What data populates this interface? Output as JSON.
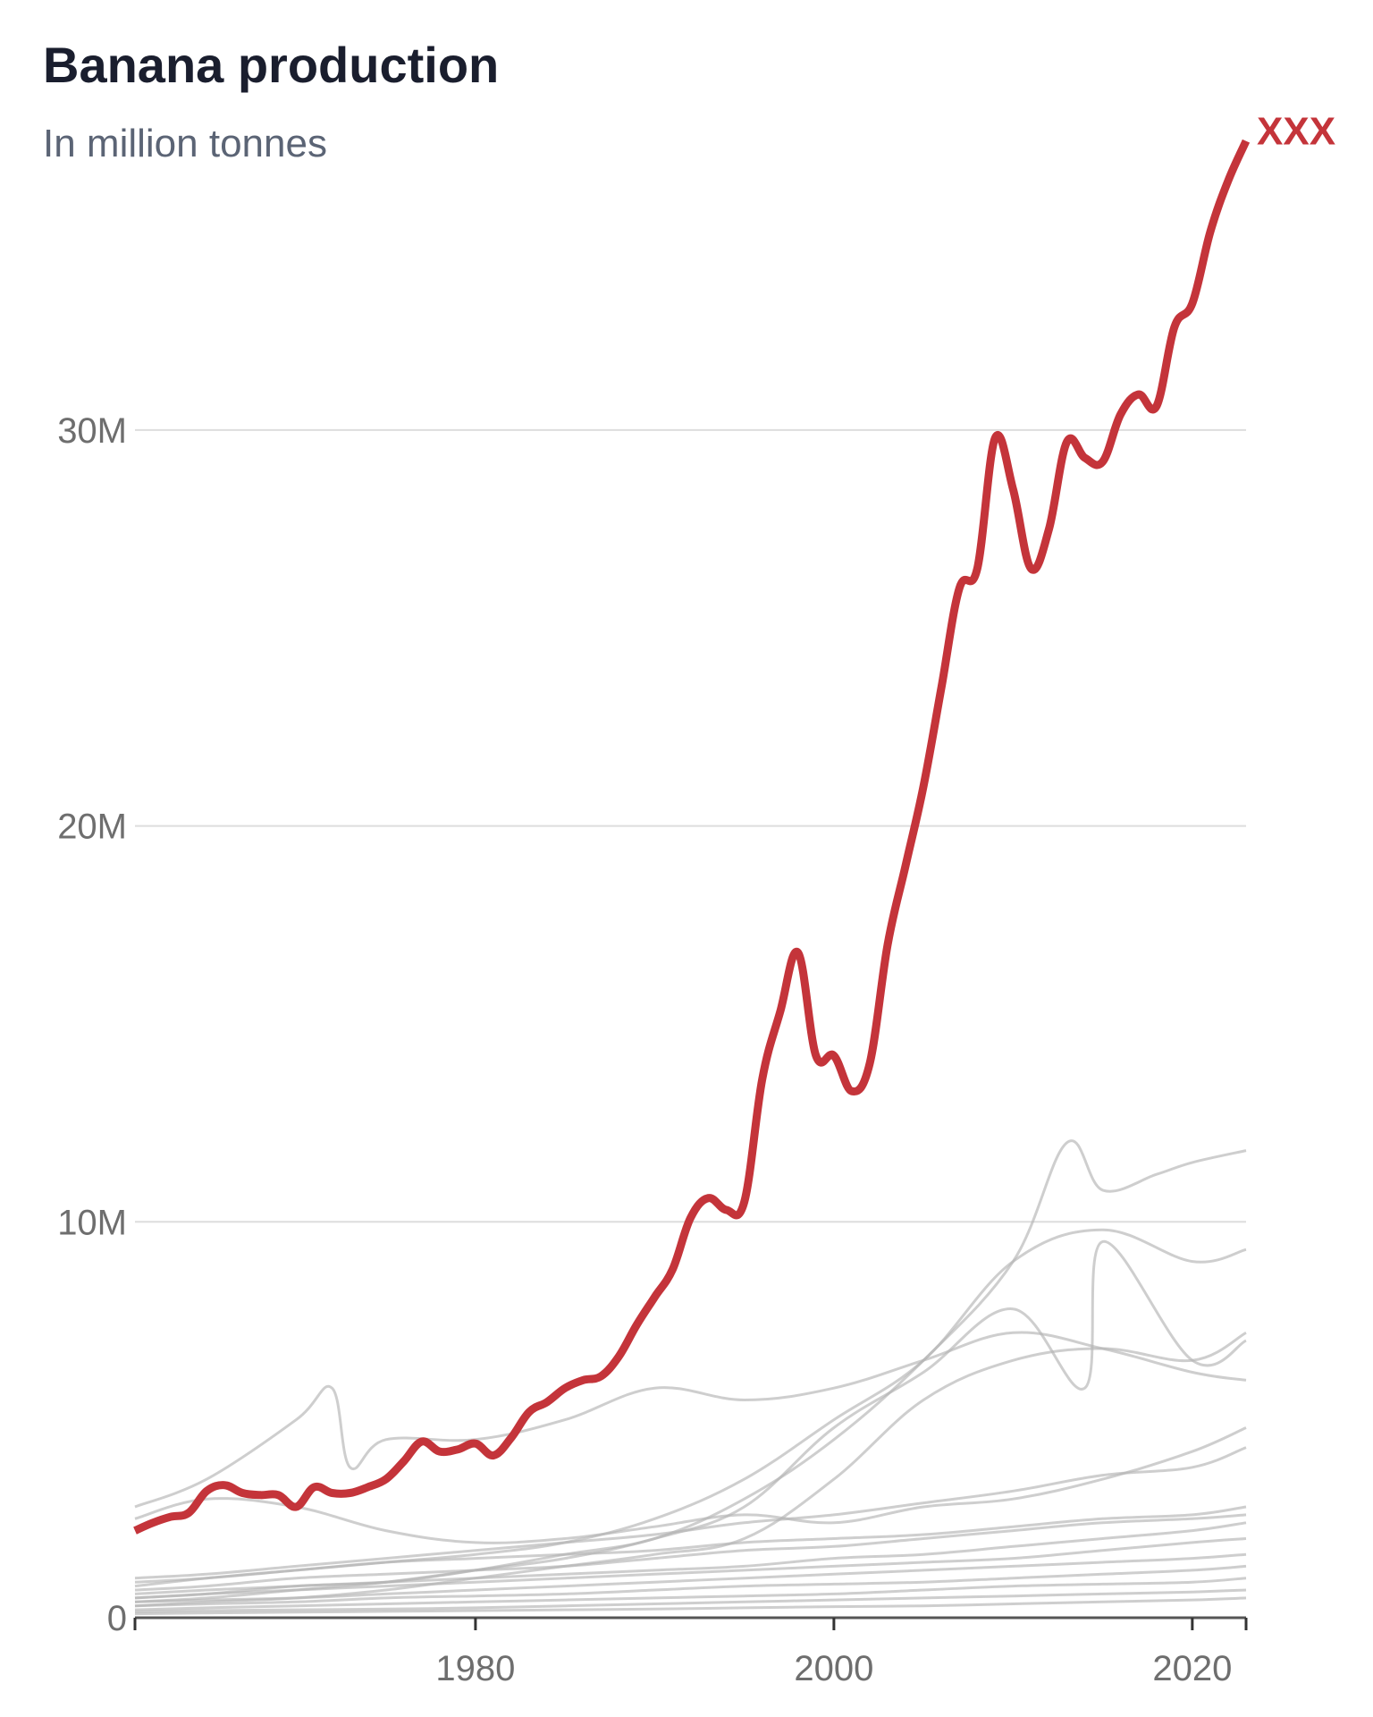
{
  "header": {
    "title": "Banana production",
    "subtitle": "In million tonnes"
  },
  "chart_data": {
    "type": "line",
    "title": "Banana production",
    "subtitle": "In million tonnes",
    "xlabel": "",
    "ylabel": "",
    "xlim": [
      1961,
      2023
    ],
    "ylim": [
      0,
      37
    ],
    "grid": true,
    "legend": "none",
    "x_ticks": [
      {
        "value": 1980,
        "label": "1980"
      },
      {
        "value": 2000,
        "label": "2000"
      },
      {
        "value": 2020,
        "label": "2020"
      }
    ],
    "y_ticks": [
      {
        "value": 0,
        "label": "0"
      },
      {
        "value": 10,
        "label": "10M"
      },
      {
        "value": 20,
        "label": "20M"
      },
      {
        "value": 30,
        "label": "30M"
      }
    ],
    "highlight_color": "#c4343a",
    "background_color": "#b3b3b3",
    "series": [
      {
        "name": "XXX",
        "highlight": true,
        "x": [
          1961,
          1962,
          1963,
          1964,
          1965,
          1966,
          1967,
          1968,
          1969,
          1970,
          1971,
          1972,
          1973,
          1974,
          1975,
          1976,
          1977,
          1978,
          1979,
          1980,
          1981,
          1982,
          1983,
          1984,
          1985,
          1986,
          1987,
          1988,
          1989,
          1990,
          1991,
          1992,
          1993,
          1994,
          1995,
          1996,
          1997,
          1998,
          1999,
          2000,
          2001,
          2002,
          2003,
          2004,
          2005,
          2006,
          2007,
          2008,
          2009,
          2010,
          2011,
          2012,
          2013,
          2014,
          2015,
          2016,
          2017,
          2018,
          2019,
          2020,
          2021,
          2022,
          2023
        ],
        "values": [
          2.2,
          2.4,
          2.55,
          2.65,
          3.2,
          3.35,
          3.15,
          3.1,
          3.1,
          2.8,
          3.3,
          3.15,
          3.15,
          3.3,
          3.5,
          3.95,
          4.45,
          4.2,
          4.25,
          4.4,
          4.1,
          4.55,
          5.2,
          5.45,
          5.8,
          6.0,
          6.1,
          6.6,
          7.4,
          8.1,
          8.8,
          10.1,
          10.6,
          10.3,
          10.5,
          13.6,
          15.3,
          16.8,
          14.2,
          14.2,
          13.3,
          14.0,
          17.0,
          19.0,
          21.0,
          23.5,
          26.0,
          26.5,
          29.8,
          28.5,
          26.5,
          27.5,
          29.7,
          29.3,
          29.2,
          30.4,
          30.9,
          30.6,
          32.6,
          33.2,
          35.0,
          36.3,
          37.3
        ]
      },
      {
        "name": "",
        "highlight": false,
        "x": [
          1961,
          1965,
          1970,
          1975,
          1980,
          1985,
          1990,
          1995,
          2000,
          2005,
          2010,
          2013,
          2015,
          2018,
          2020,
          2023
        ],
        "values": [
          0.5,
          0.6,
          0.8,
          0.9,
          1.2,
          1.6,
          2.0,
          3.0,
          4.5,
          6.5,
          9.0,
          12.0,
          10.8,
          11.2,
          11.5,
          11.8
        ]
      },
      {
        "name": "",
        "highlight": false,
        "x": [
          1961,
          1965,
          1970,
          1975,
          1980,
          1985,
          1990,
          1995,
          2000,
          2005,
          2010,
          2015,
          2020,
          2023
        ],
        "values": [
          0.8,
          1.0,
          1.2,
          1.4,
          1.6,
          1.9,
          2.5,
          3.5,
          5.0,
          6.5,
          9.0,
          9.8,
          9.0,
          9.3
        ]
      },
      {
        "name": "",
        "highlight": false,
        "x": [
          1961,
          1965,
          1970,
          1972,
          1973,
          1975,
          1980,
          1985,
          1990,
          1995,
          2000,
          2005,
          2010,
          2015,
          2020,
          2023
        ],
        "values": [
          2.8,
          3.5,
          5.0,
          5.8,
          3.8,
          4.5,
          4.5,
          5.0,
          5.8,
          5.5,
          5.8,
          6.5,
          7.2,
          6.8,
          6.2,
          6.0
        ]
      },
      {
        "name": "",
        "highlight": false,
        "x": [
          1961,
          1965,
          1970,
          1975,
          1980,
          1985,
          1990,
          1995,
          2000,
          2005,
          2010,
          2014,
          2015,
          2020,
          2023
        ],
        "values": [
          0.4,
          0.5,
          0.7,
          0.9,
          1.2,
          1.5,
          2.0,
          2.8,
          4.8,
          6.2,
          7.8,
          5.8,
          9.5,
          6.5,
          7.0
        ]
      },
      {
        "name": "",
        "highlight": false,
        "x": [
          1961,
          1965,
          1970,
          1975,
          1980,
          1985,
          1990,
          1995,
          2000,
          2005,
          2010,
          2015,
          2020,
          2023
        ],
        "values": [
          0.3,
          0.4,
          0.5,
          0.7,
          1.0,
          1.3,
          1.6,
          2.0,
          3.5,
          5.5,
          6.5,
          6.8,
          6.5,
          7.2
        ]
      },
      {
        "name": "",
        "highlight": false,
        "x": [
          1961,
          1965,
          1970,
          1975,
          1980,
          1985,
          1990,
          1995,
          2000,
          2005,
          2010,
          2015,
          2020,
          2023
        ],
        "values": [
          2.5,
          3.0,
          2.8,
          2.2,
          1.9,
          2.0,
          2.3,
          2.6,
          2.4,
          2.8,
          3.0,
          3.5,
          4.2,
          4.8
        ]
      },
      {
        "name": "",
        "highlight": false,
        "x": [
          1961,
          1965,
          1970,
          1975,
          1980,
          1985,
          1990,
          1995,
          2000,
          2005,
          2010,
          2015,
          2020,
          2023
        ],
        "values": [
          1.0,
          1.1,
          1.3,
          1.5,
          1.7,
          1.9,
          2.1,
          2.4,
          2.6,
          2.9,
          3.2,
          3.6,
          3.8,
          4.3
        ]
      },
      {
        "name": "",
        "highlight": false,
        "x": [
          1961,
          1965,
          1970,
          1975,
          1980,
          1985,
          1990,
          1995,
          2000,
          2005,
          2010,
          2015,
          2020,
          2023
        ],
        "values": [
          0.9,
          1.0,
          1.2,
          1.4,
          1.5,
          1.6,
          1.7,
          1.9,
          2.0,
          2.1,
          2.3,
          2.5,
          2.6,
          2.8
        ]
      },
      {
        "name": "",
        "highlight": false,
        "x": [
          1961,
          1965,
          1970,
          1975,
          1980,
          1985,
          1990,
          1995,
          2000,
          2005,
          2010,
          2015,
          2020,
          2023
        ],
        "values": [
          0.7,
          0.8,
          1.0,
          1.1,
          1.2,
          1.3,
          1.5,
          1.7,
          1.8,
          2.0,
          2.2,
          2.4,
          2.5,
          2.6
        ]
      },
      {
        "name": "",
        "highlight": false,
        "x": [
          1961,
          1965,
          1970,
          1975,
          1980,
          1985,
          1990,
          1995,
          2000,
          2005,
          2010,
          2015,
          2020,
          2023
        ],
        "values": [
          0.6,
          0.7,
          0.8,
          0.9,
          1.0,
          1.1,
          1.2,
          1.3,
          1.5,
          1.6,
          1.8,
          2.0,
          2.2,
          2.4
        ]
      },
      {
        "name": "",
        "highlight": false,
        "x": [
          1961,
          1965,
          1970,
          1975,
          1980,
          1985,
          1990,
          1995,
          2000,
          2005,
          2010,
          2015,
          2020,
          2023
        ],
        "values": [
          0.5,
          0.6,
          0.7,
          0.8,
          0.9,
          1.0,
          1.1,
          1.2,
          1.3,
          1.4,
          1.5,
          1.7,
          1.9,
          2.0
        ]
      },
      {
        "name": "",
        "highlight": false,
        "x": [
          1961,
          1965,
          1970,
          1975,
          1980,
          1985,
          1990,
          1995,
          2000,
          2005,
          2010,
          2015,
          2020,
          2023
        ],
        "values": [
          0.4,
          0.45,
          0.5,
          0.6,
          0.7,
          0.8,
          0.9,
          1.0,
          1.1,
          1.2,
          1.3,
          1.4,
          1.5,
          1.6
        ]
      },
      {
        "name": "",
        "highlight": false,
        "x": [
          1961,
          1965,
          1970,
          1975,
          1980,
          1985,
          1990,
          1995,
          2000,
          2005,
          2010,
          2015,
          2020,
          2023
        ],
        "values": [
          0.3,
          0.35,
          0.4,
          0.5,
          0.55,
          0.6,
          0.7,
          0.8,
          0.85,
          0.9,
          1.0,
          1.1,
          1.2,
          1.3
        ]
      },
      {
        "name": "",
        "highlight": false,
        "x": [
          1961,
          1965,
          1970,
          1975,
          1980,
          1985,
          1990,
          1995,
          2000,
          2005,
          2010,
          2015,
          2020,
          2023
        ],
        "values": [
          0.2,
          0.25,
          0.3,
          0.35,
          0.4,
          0.45,
          0.5,
          0.55,
          0.6,
          0.7,
          0.8,
          0.85,
          0.9,
          1.0
        ]
      },
      {
        "name": "",
        "highlight": false,
        "x": [
          1961,
          1965,
          1970,
          1975,
          1980,
          1985,
          1990,
          1995,
          2000,
          2005,
          2010,
          2015,
          2020,
          2023
        ],
        "values": [
          0.15,
          0.18,
          0.2,
          0.22,
          0.25,
          0.3,
          0.35,
          0.4,
          0.45,
          0.5,
          0.55,
          0.6,
          0.65,
          0.7
        ]
      },
      {
        "name": "",
        "highlight": false,
        "x": [
          1961,
          1965,
          1970,
          1975,
          1980,
          1985,
          1990,
          1995,
          2000,
          2005,
          2010,
          2015,
          2020,
          2023
        ],
        "values": [
          0.1,
          0.12,
          0.14,
          0.16,
          0.18,
          0.2,
          0.22,
          0.25,
          0.28,
          0.3,
          0.35,
          0.4,
          0.45,
          0.5
        ]
      }
    ]
  }
}
